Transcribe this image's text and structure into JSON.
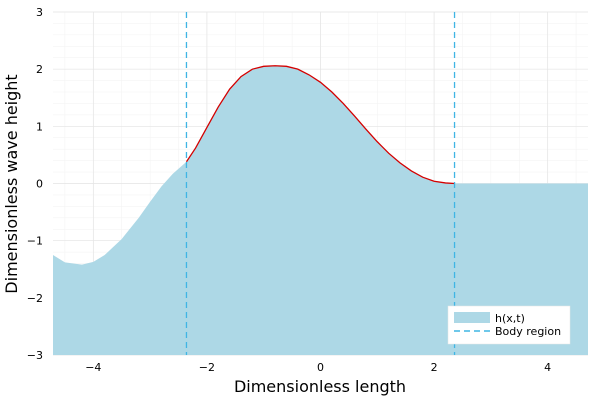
{
  "chart_data": {
    "type": "area",
    "title": "",
    "xlabel": "Dimensionless length",
    "ylabel": "Dimensionless wave height",
    "xlim": [
      -4.71,
      4.71
    ],
    "ylim": [
      -3,
      3
    ],
    "xticks": [
      -4,
      -2,
      0,
      2,
      4
    ],
    "yticks": [
      -3,
      -2,
      -1,
      0,
      1,
      2,
      3
    ],
    "grid": true,
    "legend_position": "bottom-right",
    "series": [
      {
        "name": "h(x,t)",
        "kind": "filled-area",
        "color": "#add8e6",
        "x": [
          -4.71,
          -4.5,
          -4.2,
          -4.0,
          -3.8,
          -3.5,
          -3.2,
          -3.0,
          -2.8,
          -2.6,
          -2.36,
          -2.2,
          -2.0,
          -1.8,
          -1.6,
          -1.4,
          -1.2,
          -1.0,
          -0.8,
          -0.6,
          -0.4,
          -0.2,
          0.0,
          0.2,
          0.4,
          0.6,
          0.8,
          1.0,
          1.2,
          1.4,
          1.6,
          1.8,
          2.0,
          2.2,
          2.36,
          2.37,
          4.71
        ],
        "y": [
          -1.25,
          -1.38,
          -1.42,
          -1.37,
          -1.25,
          -0.97,
          -0.6,
          -0.32,
          -0.05,
          0.17,
          0.38,
          0.62,
          0.98,
          1.34,
          1.65,
          1.87,
          2.0,
          2.05,
          2.06,
          2.05,
          2.0,
          1.9,
          1.77,
          1.6,
          1.4,
          1.18,
          0.95,
          0.73,
          0.53,
          0.36,
          0.22,
          0.11,
          0.04,
          0.01,
          0.0,
          0.0,
          0.0
        ]
      },
      {
        "name": "",
        "kind": "line",
        "color": "#d40000",
        "x": [
          -2.36,
          -2.2,
          -2.0,
          -1.8,
          -1.6,
          -1.4,
          -1.2,
          -1.0,
          -0.8,
          -0.6,
          -0.4,
          -0.2,
          0.0,
          0.2,
          0.4,
          0.6,
          0.8,
          1.0,
          1.2,
          1.4,
          1.6,
          1.8,
          2.0,
          2.2,
          2.36
        ],
        "y": [
          0.38,
          0.62,
          0.98,
          1.34,
          1.65,
          1.87,
          2.0,
          2.05,
          2.06,
          2.05,
          2.0,
          1.9,
          1.77,
          1.6,
          1.4,
          1.18,
          0.95,
          0.73,
          0.53,
          0.36,
          0.22,
          0.11,
          0.04,
          0.01,
          0.0
        ]
      },
      {
        "name": "Body region",
        "kind": "vline",
        "style": "dashed",
        "color": "#3fb5e4",
        "x": [
          -2.36,
          2.36
        ]
      }
    ],
    "legend": [
      {
        "label": "h(x,t)",
        "marker": "filled-box",
        "color": "#add8e6"
      },
      {
        "label": "Body region",
        "marker": "dashed-line",
        "color": "#3fb5e4"
      }
    ],
    "tick_labels": {
      "x": [
        "−4",
        "−2",
        "0",
        "2",
        "4"
      ],
      "y": [
        "−3",
        "−2",
        "−1",
        "0",
        "1",
        "2",
        "3"
      ]
    }
  }
}
